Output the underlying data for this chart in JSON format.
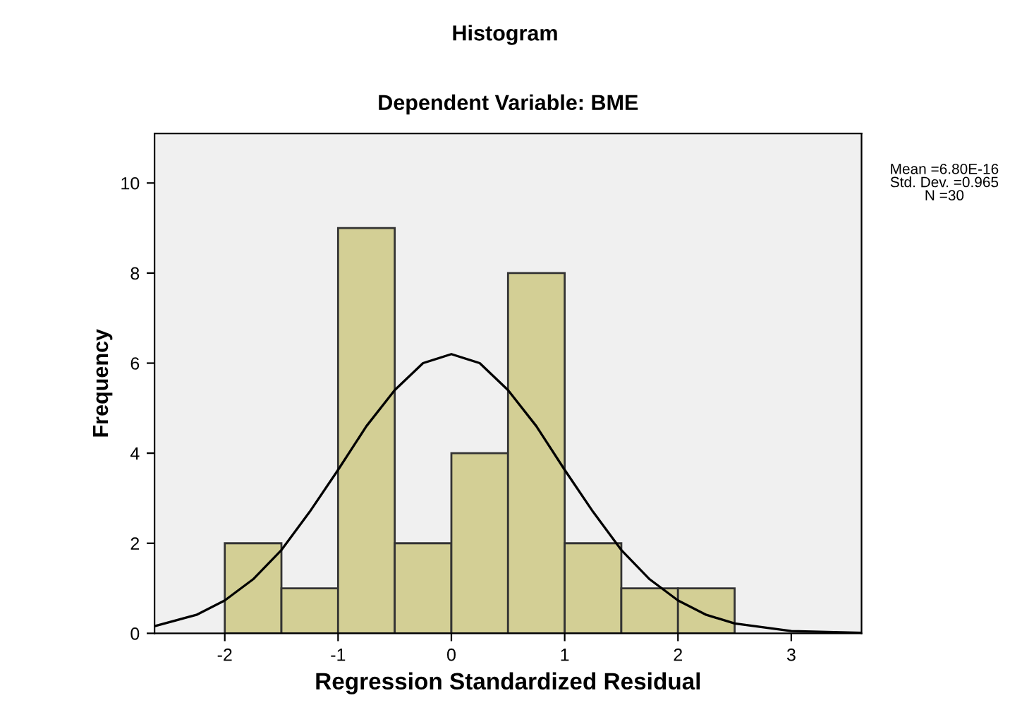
{
  "chart_data": {
    "type": "histogram",
    "title": "Histogram",
    "subtitle": "Dependent Variable: BME",
    "xlabel": "Regression Standardized Residual",
    "ylabel": "Frequency",
    "bins": [
      -2,
      -1.5,
      -1,
      -0.5,
      0,
      0.5,
      1,
      1.5,
      2,
      2.5
    ],
    "values": [
      2,
      1,
      9,
      2,
      4,
      8,
      2,
      1,
      1
    ],
    "color": "#d3cf95",
    "series": [
      {
        "type": "line",
        "color": "#000000",
        "x": [
          -2.62,
          -2.25,
          -2,
          -1.75,
          -1.5,
          -1.25,
          -1,
          -0.75,
          -0.5,
          -0.25,
          0,
          0.25,
          0.5,
          0.75,
          1,
          1.25,
          1.5,
          1.75,
          2,
          2.25,
          2.5,
          3,
          3.62
        ],
        "values": [
          0.16,
          0.41,
          0.73,
          1.2,
          1.85,
          2.7,
          3.63,
          4.6,
          5.4,
          6.0,
          6.2,
          6.0,
          5.4,
          4.6,
          3.63,
          2.7,
          1.85,
          1.2,
          0.73,
          0.41,
          0.22,
          0.05,
          0.01
        ]
      }
    ],
    "xlim": [
      -2.62,
      3.62
    ],
    "ylim": [
      0,
      11.1
    ],
    "xticks": [
      -2,
      -1,
      0,
      1,
      2,
      3
    ],
    "yticks": [
      0,
      2,
      4,
      6,
      8,
      10
    ],
    "annotations": [
      "Mean =6.80E-16\nStd. Dev. =0.965\nN =30"
    ],
    "grid": false,
    "legend": false
  }
}
